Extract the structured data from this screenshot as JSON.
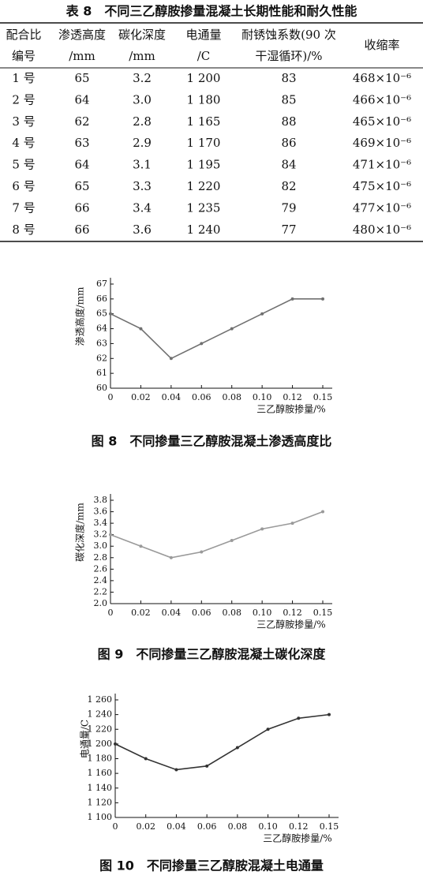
{
  "table": {
    "title": "表 8　不同三乙醇胺掺量混凝土长期性能和耐久性能",
    "header": [
      [
        "配合比",
        "编号"
      ],
      [
        "渗透高度",
        "/mm"
      ],
      [
        "碳化深度",
        "/mm"
      ],
      [
        "电通量",
        "/C"
      ],
      [
        "耐锈蚀系数(90 次",
        "干湿循环)/%"
      ],
      [
        "收缩率"
      ]
    ],
    "rows": [
      [
        "1 号",
        "65",
        "3.2",
        "1 200",
        "83",
        "468×10⁻⁶"
      ],
      [
        "2 号",
        "64",
        "3.0",
        "1 180",
        "85",
        "466×10⁻⁶"
      ],
      [
        "3 号",
        "62",
        "2.8",
        "1 165",
        "88",
        "465×10⁻⁶"
      ],
      [
        "4 号",
        "63",
        "2.9",
        "1 170",
        "86",
        "469×10⁻⁶"
      ],
      [
        "5 号",
        "64",
        "3.1",
        "1 195",
        "84",
        "471×10⁻⁶"
      ],
      [
        "6 号",
        "65",
        "3.3",
        "1 220",
        "82",
        "475×10⁻⁶"
      ],
      [
        "7 号",
        "66",
        "3.4",
        "1 235",
        "79",
        "477×10⁻⁶"
      ],
      [
        "8 号",
        "66",
        "3.6",
        "1 240",
        "77",
        "480×10⁻⁶"
      ]
    ]
  },
  "chart_data": [
    {
      "type": "line",
      "caption": "图 8　不同掺量三乙醇胺混凝土渗透高度比",
      "x_label": "三乙醇胺掺量/%",
      "y_label": "渗透高度/mm",
      "categories": [
        "0",
        "0.02",
        "0.04",
        "0.06",
        "0.08",
        "0.10",
        "0.12",
        "0.15"
      ],
      "values": [
        65,
        64,
        62,
        63,
        64,
        65,
        66,
        66
      ],
      "color": "#707070",
      "ylim": [
        60,
        67
      ],
      "yticks": [
        60,
        61,
        62,
        63,
        64,
        65,
        66,
        67
      ]
    },
    {
      "type": "line",
      "caption": "图 9　不同掺量三乙醇胺混凝土碳化深度",
      "x_label": "三乙醇胺掺量/%",
      "y_label": "碳化深度/mm",
      "categories": [
        "0",
        "0.02",
        "0.04",
        "0.06",
        "0.08",
        "0.10",
        "0.12",
        "0.15"
      ],
      "values": [
        3.2,
        3.0,
        2.8,
        2.9,
        3.1,
        3.3,
        3.4,
        3.6
      ],
      "color": "#9a9a9a",
      "ylim": [
        2.0,
        3.8
      ],
      "yticks": [
        {
          "value": 2,
          "label": "2.0"
        },
        2.2,
        2.4,
        2.6,
        2.8,
        {
          "value": 3,
          "label": "3.0"
        },
        3.2,
        3.4,
        3.6,
        3.8
      ]
    },
    {
      "type": "line",
      "caption": "图 10　不同掺量三乙醇胺混凝土电通量",
      "x_label": "三乙醇胺掺量/%",
      "y_label": "电通量/C",
      "categories": [
        "0",
        "0.02",
        "0.04",
        "0.06",
        "0.08",
        "0.10",
        "0.12",
        "0.15"
      ],
      "values": [
        1200,
        1180,
        1165,
        1170,
        1195,
        1220,
        1235,
        1240
      ],
      "color": "#333333",
      "ylim": [
        1100,
        1260
      ],
      "yticks": [
        {
          "value": 1100,
          "label": "1 100"
        },
        {
          "value": 1120,
          "label": "1 120"
        },
        {
          "value": 1140,
          "label": "1 140"
        },
        {
          "value": 1160,
          "label": "1 160"
        },
        {
          "value": 1180,
          "label": "1 180"
        },
        {
          "value": 1200,
          "label": "1 200"
        },
        {
          "value": 1220,
          "label": "1 220"
        },
        {
          "value": 1240,
          "label": "1 240"
        },
        {
          "value": 1260,
          "label": "1 260"
        }
      ]
    }
  ]
}
